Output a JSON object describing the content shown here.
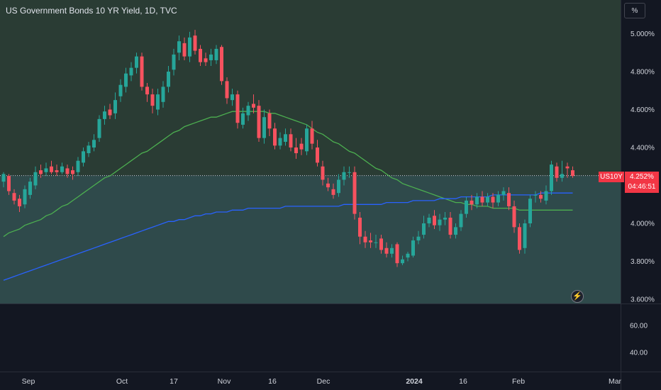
{
  "header": {
    "title": "US Government Bonds 10 YR Yield, 1D, TVC",
    "unit_button": "%"
  },
  "price_badge": {
    "symbol": "US10Y",
    "value": "4.252%",
    "countdown": "04:46:51"
  },
  "flash_button": {
    "icon": "lightning-icon",
    "glyph": "⚡"
  },
  "colors": {
    "up": "#26a69a",
    "down": "#f7525f",
    "ma_short": "#4caf50",
    "ma_long": "#2962ff",
    "zone_upper": "#2a3c34",
    "zone_lower": "#2f4a4b",
    "badge": "#f23645"
  },
  "chart_data": [
    {
      "type": "candlestick",
      "title": "US Government Bonds 10 YR Yield, 1D, TVC",
      "ylim": [
        3.6,
        5.06
      ],
      "y_ticks": [
        "5.000%",
        "4.800%",
        "4.600%",
        "4.400%",
        "4.000%",
        "3.800%",
        "3.600%"
      ],
      "x_ticks": [
        "Sep",
        "Oct",
        "17",
        "Nov",
        "16",
        "Dec",
        "2024",
        "16",
        "Feb",
        "Mar"
      ],
      "current_value_line": 4.252,
      "series": [
        {
          "name": "",
          "kind": "ohlc",
          "open": [
            4.22,
            4.25,
            4.16,
            4.13,
            4.1,
            4.15,
            4.2,
            4.28,
            4.27,
            4.3,
            4.28,
            4.27,
            4.29,
            4.28,
            4.27,
            4.32,
            4.37,
            4.4,
            4.45,
            4.55,
            4.6,
            4.58,
            4.67,
            4.72,
            4.78,
            4.82,
            4.88,
            4.72,
            4.68,
            4.6,
            4.64,
            4.72,
            4.81,
            4.9,
            4.95,
            4.88,
            4.99,
            4.92,
            4.87,
            4.86,
            4.86,
            4.93,
            4.75,
            4.65,
            4.68,
            4.52,
            4.57,
            4.63,
            4.62,
            4.45,
            4.58,
            4.5,
            4.41,
            4.43,
            4.47,
            4.4,
            4.42,
            4.38,
            4.5,
            4.4,
            4.3,
            4.21,
            4.18,
            4.16,
            4.23,
            4.27,
            4.27,
            4.03,
            3.93,
            3.91,
            3.9,
            3.92,
            3.87,
            3.84,
            3.89,
            3.79,
            3.82,
            3.83,
            3.91,
            3.94,
            4.0,
            4.04,
            3.99,
            4.02,
            4.03,
            3.94,
            3.98,
            4.05,
            4.12,
            4.1,
            4.14,
            4.11,
            4.14,
            4.11,
            4.15,
            4.16,
            4.09,
            3.98,
            3.87,
            4.0,
            4.15,
            4.15,
            4.12,
            4.17,
            4.3,
            4.24,
            4.3,
            4.28
          ],
          "close": [
            4.26,
            4.17,
            4.12,
            4.09,
            4.18,
            4.22,
            4.27,
            4.26,
            4.29,
            4.27,
            4.27,
            4.3,
            4.26,
            4.26,
            4.33,
            4.38,
            4.41,
            4.44,
            4.55,
            4.59,
            4.57,
            4.65,
            4.73,
            4.79,
            4.82,
            4.88,
            4.72,
            4.68,
            4.62,
            4.68,
            4.72,
            4.8,
            4.89,
            4.96,
            4.88,
            4.98,
            4.91,
            4.85,
            4.85,
            4.89,
            4.92,
            4.75,
            4.66,
            4.68,
            4.53,
            4.58,
            4.62,
            4.61,
            4.45,
            4.56,
            4.5,
            4.41,
            4.45,
            4.47,
            4.4,
            4.37,
            4.39,
            4.5,
            4.42,
            4.32,
            4.23,
            4.19,
            4.15,
            4.23,
            4.27,
            4.27,
            4.05,
            3.93,
            3.9,
            3.9,
            3.9,
            3.86,
            3.84,
            3.87,
            3.79,
            3.81,
            3.84,
            3.91,
            3.93,
            4.0,
            4.03,
            3.99,
            4.02,
            4.03,
            3.94,
            3.98,
            4.05,
            4.12,
            4.1,
            4.14,
            4.11,
            4.14,
            4.11,
            4.15,
            4.17,
            4.09,
            3.98,
            3.86,
            4.0,
            4.13,
            4.15,
            4.13,
            4.17,
            4.31,
            4.24,
            4.26,
            4.29,
            4.25
          ],
          "high": [
            4.27,
            4.26,
            4.18,
            4.15,
            4.2,
            4.24,
            4.3,
            4.31,
            4.32,
            4.33,
            4.31,
            4.32,
            4.31,
            4.3,
            4.35,
            4.4,
            4.43,
            4.47,
            4.57,
            4.62,
            4.63,
            4.69,
            4.76,
            4.82,
            4.85,
            4.9,
            4.9,
            4.74,
            4.71,
            4.71,
            4.75,
            4.83,
            4.92,
            4.99,
            4.98,
            5.01,
            5.02,
            4.94,
            4.9,
            4.92,
            4.94,
            4.94,
            4.77,
            4.71,
            4.7,
            4.61,
            4.64,
            4.68,
            4.65,
            4.6,
            4.6,
            4.53,
            4.48,
            4.5,
            4.5,
            4.45,
            4.45,
            4.52,
            4.54,
            4.44,
            4.33,
            4.24,
            4.21,
            4.26,
            4.3,
            4.3,
            4.3,
            4.06,
            3.96,
            3.95,
            3.94,
            3.94,
            3.9,
            3.89,
            3.9,
            3.83,
            3.85,
            3.93,
            3.96,
            4.04,
            4.05,
            4.07,
            4.05,
            4.06,
            4.06,
            4.0,
            4.07,
            4.14,
            4.15,
            4.16,
            4.17,
            4.16,
            4.16,
            4.17,
            4.19,
            4.19,
            4.12,
            4.0,
            4.02,
            4.15,
            4.17,
            4.17,
            4.2,
            4.33,
            4.32,
            4.33,
            4.32,
            4.3
          ],
          "low": [
            4.19,
            4.15,
            4.1,
            4.06,
            4.08,
            4.13,
            4.18,
            4.24,
            4.25,
            4.26,
            4.25,
            4.26,
            4.24,
            4.23,
            4.25,
            4.3,
            4.35,
            4.38,
            4.43,
            4.52,
            4.55,
            4.55,
            4.64,
            4.69,
            4.75,
            4.79,
            4.7,
            4.64,
            4.58,
            4.57,
            4.61,
            4.69,
            4.78,
            4.86,
            4.86,
            4.85,
            4.89,
            4.83,
            4.83,
            4.83,
            4.84,
            4.73,
            4.63,
            4.62,
            4.5,
            4.5,
            4.54,
            4.58,
            4.43,
            4.42,
            4.46,
            4.39,
            4.39,
            4.41,
            4.38,
            4.34,
            4.36,
            4.36,
            4.39,
            4.3,
            4.2,
            4.17,
            4.13,
            4.14,
            4.2,
            4.24,
            4.02,
            3.89,
            3.87,
            3.87,
            3.87,
            3.84,
            3.82,
            3.82,
            3.77,
            3.78,
            3.8,
            3.82,
            3.89,
            3.92,
            3.98,
            3.97,
            3.96,
            3.99,
            3.92,
            3.92,
            3.96,
            4.03,
            4.07,
            4.08,
            4.09,
            4.09,
            4.08,
            4.09,
            4.12,
            4.07,
            3.95,
            3.84,
            3.84,
            3.98,
            4.11,
            4.11,
            4.1,
            4.15,
            4.22,
            4.22,
            4.24,
            4.24
          ]
        },
        {
          "name": "",
          "kind": "line",
          "role": "ma_short",
          "values": [
            3.93,
            3.95,
            3.96,
            3.97,
            3.99,
            4.0,
            4.01,
            4.02,
            4.04,
            4.05,
            4.07,
            4.09,
            4.1,
            4.12,
            4.14,
            4.16,
            4.18,
            4.2,
            4.22,
            4.24,
            4.25,
            4.27,
            4.29,
            4.31,
            4.33,
            4.35,
            4.37,
            4.38,
            4.4,
            4.42,
            4.44,
            4.46,
            4.48,
            4.49,
            4.51,
            4.52,
            4.53,
            4.54,
            4.55,
            4.56,
            4.56,
            4.57,
            4.58,
            4.59,
            4.59,
            4.59,
            4.59,
            4.59,
            4.59,
            4.59,
            4.58,
            4.58,
            4.57,
            4.56,
            4.55,
            4.54,
            4.53,
            4.52,
            4.5,
            4.48,
            4.47,
            4.45,
            4.43,
            4.42,
            4.4,
            4.38,
            4.37,
            4.35,
            4.33,
            4.31,
            4.29,
            4.28,
            4.26,
            4.24,
            4.23,
            4.21,
            4.2,
            4.19,
            4.18,
            4.17,
            4.16,
            4.15,
            4.14,
            4.13,
            4.12,
            4.11,
            4.11,
            4.1,
            4.1,
            4.09,
            4.09,
            4.09,
            4.08,
            4.08,
            4.08,
            4.08,
            4.08,
            4.07,
            4.07,
            4.07,
            4.07,
            4.07,
            4.07,
            4.07,
            4.07,
            4.07,
            4.07,
            4.07
          ]
        },
        {
          "name": "",
          "kind": "line",
          "role": "ma_long",
          "values": [
            3.7,
            3.71,
            3.72,
            3.73,
            3.74,
            3.75,
            3.76,
            3.77,
            3.78,
            3.79,
            3.8,
            3.81,
            3.82,
            3.83,
            3.84,
            3.85,
            3.86,
            3.87,
            3.88,
            3.89,
            3.9,
            3.91,
            3.92,
            3.93,
            3.94,
            3.95,
            3.96,
            3.97,
            3.98,
            3.99,
            4.0,
            4.01,
            4.01,
            4.02,
            4.02,
            4.03,
            4.04,
            4.04,
            4.05,
            4.05,
            4.06,
            4.06,
            4.06,
            4.07,
            4.07,
            4.07,
            4.08,
            4.08,
            4.08,
            4.08,
            4.08,
            4.08,
            4.08,
            4.09,
            4.09,
            4.09,
            4.09,
            4.09,
            4.09,
            4.09,
            4.09,
            4.09,
            4.09,
            4.09,
            4.1,
            4.1,
            4.1,
            4.1,
            4.1,
            4.1,
            4.1,
            4.1,
            4.11,
            4.11,
            4.11,
            4.11,
            4.11,
            4.12,
            4.12,
            4.12,
            4.12,
            4.12,
            4.13,
            4.13,
            4.13,
            4.13,
            4.14,
            4.14,
            4.14,
            4.14,
            4.14,
            4.14,
            4.15,
            4.15,
            4.15,
            4.15,
            4.15,
            4.15,
            4.15,
            4.15,
            4.15,
            4.16,
            4.16,
            4.16,
            4.16,
            4.16,
            4.16,
            4.16
          ]
        }
      ]
    },
    {
      "type": "line",
      "title": "",
      "y_ticks": [
        "60.00",
        "40.00"
      ],
      "series": []
    }
  ]
}
